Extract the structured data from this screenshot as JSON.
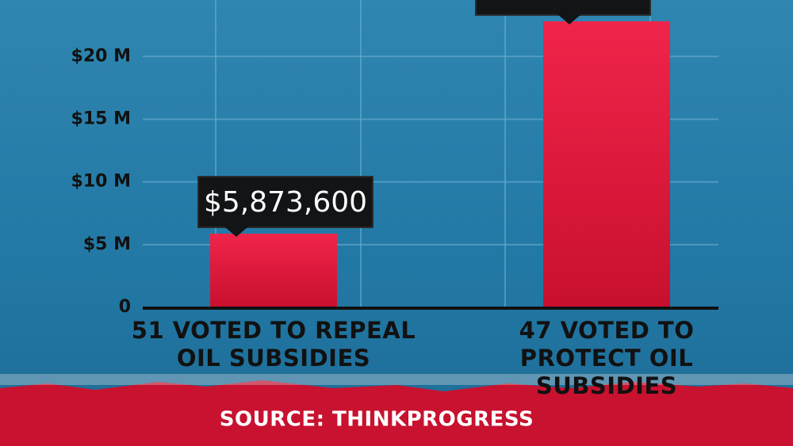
{
  "chart_data": {
    "type": "bar",
    "categories": [
      "51 VOTED TO REPEAL OIL SUBSIDIES",
      "47 VOTED TO PROTECT OIL SUBSIDIES"
    ],
    "values": [
      5873600,
      22800000
    ],
    "value_labels": [
      "$5,873,600",
      null
    ],
    "color": "#e5173b",
    "ylim": [
      0,
      24500000
    ],
    "yticks": [
      0,
      {
        "value": 5000000,
        "label": "$5 M"
      },
      {
        "value": 10000000,
        "label": "$10 M"
      },
      {
        "value": 15000000,
        "label": "$15 M"
      },
      {
        "value": 20000000,
        "label": "$20 M"
      }
    ],
    "grid": true,
    "source": "SOURCE: THINKPROGRESS"
  }
}
